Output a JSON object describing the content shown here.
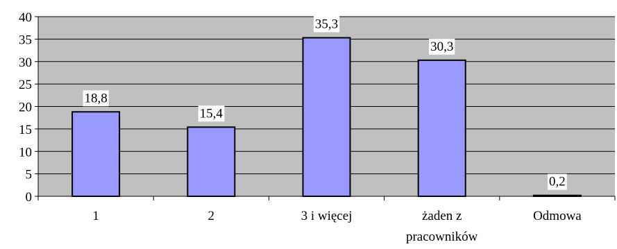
{
  "chart_data": {
    "type": "bar",
    "categories": [
      "1",
      "2",
      "3 i więcej",
      "żaden z pracowników",
      "Odmowa"
    ],
    "category_lines": [
      [
        "1"
      ],
      [
        "2"
      ],
      [
        "3 i więcej"
      ],
      [
        "żaden z",
        "pracowników"
      ],
      [
        "Odmowa"
      ]
    ],
    "values": [
      18.8,
      15.4,
      35.3,
      30.3,
      0.2
    ],
    "data_labels": [
      "18,8",
      "15,4",
      "35,3",
      "30,3",
      "0,2"
    ],
    "ylim": [
      0,
      40
    ],
    "yticks": [
      0,
      5,
      10,
      15,
      20,
      25,
      30,
      35,
      40
    ],
    "title": "",
    "xlabel": "",
    "ylabel": "",
    "grid": true,
    "legend": "none",
    "colors": {
      "plot_background": "#c0c0c0",
      "bar_fill": "#9999ff",
      "bar_stroke": "#000000",
      "gridline": "#000000"
    }
  }
}
